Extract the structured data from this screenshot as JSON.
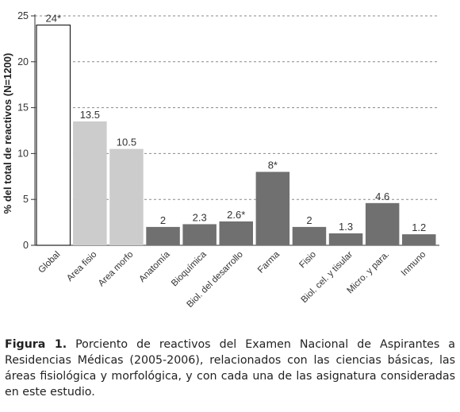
{
  "chart_data": {
    "type": "bar",
    "ylabel": "% del total de reactivos (N=1200)",
    "ylim": [
      0,
      25
    ],
    "yticks": [
      0,
      5,
      10,
      15,
      20,
      25
    ],
    "grid": "horizontal-dashed",
    "categories": [
      "Global",
      "Area fisio",
      "Area morfo",
      "Anatomía",
      "Bioquímica",
      "Biol. del desarrollo",
      "Farma",
      "Fisio",
      "Biol. cel. y tisular",
      "Micro. y para.",
      "Inmuno"
    ],
    "values": [
      24,
      13.5,
      10.5,
      2,
      2.3,
      2.6,
      8,
      2,
      1.3,
      4.6,
      1.2
    ],
    "value_labels": [
      "24*",
      "13.5",
      "10.5",
      "2",
      "2.3",
      "2.6*",
      "8*",
      "2",
      "1.3",
      "4.6",
      "1.2"
    ],
    "bar_colors": [
      "#ffffff",
      "#cccccc",
      "#cccccc",
      "#707070",
      "#707070",
      "#707070",
      "#707070",
      "#707070",
      "#707070",
      "#707070",
      "#707070"
    ]
  },
  "caption": {
    "lead": "Figura 1.",
    "text": " Porciento de reactivos del Examen Nacional de Aspirantes a Residencias Médicas (2005-2006), relacionados con las ciencias básicas, las áreas fisiológica y morfológica, y con cada una de las asignatura consideradas en este estudio."
  }
}
